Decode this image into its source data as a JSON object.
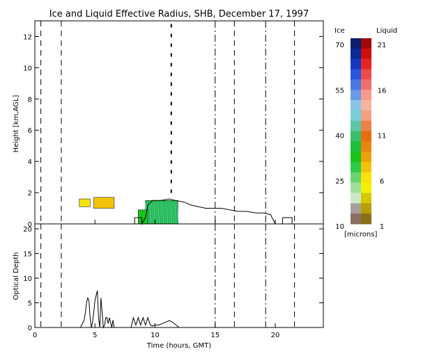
{
  "chart_data": [
    {
      "type": "heatmap",
      "title": "Ice and Liquid Effective Radius, SHB, December 17, 1997",
      "xlabel": "",
      "ylabel": "Height [km,AGL]",
      "xlim": [
        0,
        24
      ],
      "ylim": [
        0,
        13
      ],
      "xticks": [
        0,
        5,
        10,
        15,
        20
      ],
      "yticks": [
        0,
        2,
        4,
        6,
        8,
        10,
        12
      ],
      "grid": false,
      "vertical_markers": {
        "dashed": [
          0.5,
          2.2,
          16.6,
          21.6
        ],
        "dash_dot": [
          15.0,
          19.2
        ]
      },
      "cloud_regions": [
        {
          "phase": "liquid",
          "x": [
            3.7,
            4.6
          ],
          "y": [
            1.1,
            1.6
          ],
          "value_microns": 6
        },
        {
          "phase": "liquid",
          "x": [
            4.9,
            6.6
          ],
          "y": [
            1.0,
            1.7
          ],
          "value_microns": 7
        },
        {
          "phase": "ice",
          "x": [
            9.2,
            11.9
          ],
          "y": [
            0.0,
            1.5
          ],
          "value_microns": 35
        },
        {
          "phase": "ice",
          "x": [
            8.6,
            9.4
          ],
          "y": [
            0.0,
            0.9
          ],
          "value_microns": 30
        },
        {
          "phase": "ice",
          "x": [
            11.3,
            11.4
          ],
          "y": [
            1.6,
            12.8
          ],
          "value_microns": 40
        }
      ],
      "cloud_top_outline": [
        [
          8.3,
          0.0
        ],
        [
          8.3,
          0.4
        ],
        [
          8.9,
          0.4
        ],
        [
          8.9,
          0.0
        ],
        [
          9.2,
          0.4
        ],
        [
          9.4,
          1.2
        ],
        [
          9.8,
          1.5
        ],
        [
          10.5,
          1.5
        ],
        [
          11.2,
          1.6
        ],
        [
          11.7,
          1.5
        ],
        [
          12.4,
          1.4
        ],
        [
          13.0,
          1.2
        ],
        [
          13.6,
          1.1
        ],
        [
          14.2,
          1.0
        ],
        [
          14.8,
          1.0
        ],
        [
          15.5,
          1.0
        ],
        [
          16.2,
          0.9
        ],
        [
          16.9,
          0.8
        ],
        [
          17.6,
          0.8
        ],
        [
          18.4,
          0.7
        ],
        [
          19.0,
          0.7
        ],
        [
          19.6,
          0.6
        ],
        [
          20.0,
          0.0
        ],
        [
          20.6,
          0.0
        ],
        [
          20.6,
          0.4
        ],
        [
          21.4,
          0.4
        ],
        [
          21.4,
          0.0
        ]
      ]
    },
    {
      "type": "line",
      "xlabel": "Time (hours, GMT)",
      "ylabel": "Optical Depth",
      "xlim": [
        0,
        24
      ],
      "ylim": [
        0,
        21
      ],
      "xticks": [
        0,
        5,
        10,
        15,
        20
      ],
      "yticks": [
        0,
        5,
        10,
        15,
        20
      ],
      "grid": false,
      "x": [
        3.8,
        4.1,
        4.2,
        4.3,
        4.4,
        4.5,
        4.6,
        4.7,
        4.8,
        4.9,
        5.0,
        5.1,
        5.2,
        5.3,
        5.4,
        5.5,
        5.6,
        5.7,
        5.8,
        5.9,
        6.0,
        6.1,
        6.2,
        6.3,
        6.4,
        6.5,
        6.6,
        8.0,
        8.2,
        8.4,
        8.6,
        8.8,
        9.0,
        9.2,
        9.4,
        9.6,
        9.8,
        10.0,
        10.3,
        10.6,
        10.9,
        11.2,
        11.5,
        11.8,
        12.0
      ],
      "values": [
        0,
        1.5,
        3,
        5,
        6,
        5.5,
        2,
        0,
        1,
        3,
        5.5,
        6.5,
        7.5,
        2,
        0,
        6,
        3,
        0,
        0.5,
        2,
        2,
        0.8,
        2,
        1,
        0,
        1.5,
        0,
        0,
        2,
        0.5,
        2,
        0.5,
        2,
        0.5,
        2,
        0.5,
        0.3,
        0.5,
        0.5,
        0.8,
        1.1,
        1.4,
        1.0,
        0.4,
        0
      ]
    }
  ],
  "colorbar": {
    "ice_label": "Ice",
    "liquid_label": "Liquid",
    "units": "[microns]",
    "ice_ticks": [
      "70",
      "55",
      "40",
      "25",
      "10"
    ],
    "liquid_ticks": [
      "21",
      "16",
      "11",
      "6",
      "1"
    ],
    "ice_colors": [
      "#0b1d6e",
      "#0c2a98",
      "#1537c0",
      "#2a55dc",
      "#4878e2",
      "#6a9ae6",
      "#8cc4e8",
      "#78d0d8",
      "#5ec6a8",
      "#38bf6a",
      "#1dbf3c",
      "#19c31b",
      "#2ecb48",
      "#6ad46e",
      "#a0e09a",
      "#cde8c8",
      "#a6a098",
      "#8a6e60"
    ],
    "liquid_colors": [
      "#9e0a0a",
      "#cc1010",
      "#e52525",
      "#ee4a4a",
      "#f07070",
      "#f59b8e",
      "#f5b4a0",
      "#f2a080",
      "#ec8248",
      "#e86e14",
      "#e88510",
      "#eca20a",
      "#f2c20a",
      "#f7e20a",
      "#f2f200",
      "#d4c800",
      "#b59e08",
      "#8a7015"
    ]
  }
}
